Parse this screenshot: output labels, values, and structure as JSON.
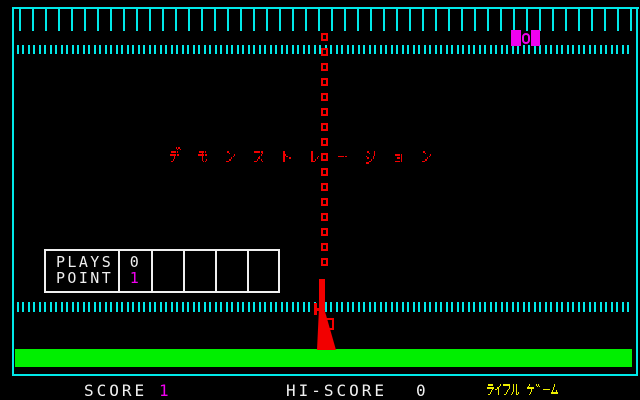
{
  "colors": {
    "cyan": "#00e8e8",
    "red": "#f20000",
    "magenta": "#f000f0",
    "green": "#00ef00",
    "white": "#f0f0f0",
    "yellow": "#efef00",
    "background": "#000000"
  },
  "demo_title": {
    "text": "デモンストレーション"
  },
  "sprites": {
    "target": "magenta-target-sprite",
    "rifle": "red-rifle-sprite"
  },
  "score_panel": {
    "plays_label": "PLAYS",
    "plays_value": "0",
    "point_label": "POINT",
    "point_value": "1",
    "empty_cells": 4
  },
  "status_bar": {
    "score_label": "SCORE",
    "score_value": "1",
    "hiscore_label": "HI-SCORE",
    "hiscore_value": "0",
    "game_title": "ライフル ゲーム"
  }
}
